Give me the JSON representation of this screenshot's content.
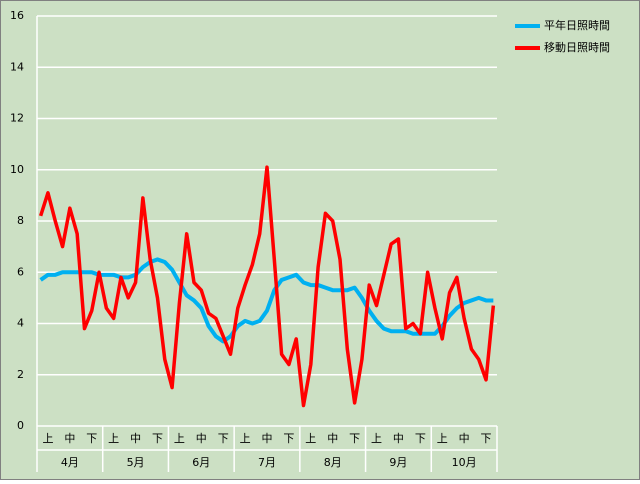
{
  "chart_data": {
    "type": "line",
    "categories": [
      null,
      "上",
      null,
      null,
      "中",
      null,
      null,
      "下",
      null,
      null,
      "上",
      null,
      null,
      "中",
      null,
      null,
      "下",
      null,
      null,
      "上",
      null,
      null,
      "中",
      null,
      null,
      "下",
      null,
      null,
      "上",
      null,
      null,
      "中",
      null,
      null,
      "下",
      null,
      null,
      "上",
      null,
      null,
      "中",
      null,
      null,
      "下",
      null,
      null,
      "上",
      null,
      null,
      "中",
      null,
      null,
      "下",
      null,
      null,
      "上",
      null,
      null,
      "中",
      null,
      null,
      "下",
      null
    ],
    "groups": [
      "4月",
      "5月",
      "6月",
      "7月",
      "8月",
      "9月",
      "10月"
    ],
    "series": [
      {
        "name": "平年日照時間",
        "color": "#00b0f0",
        "values": [
          5.7,
          5.9,
          5.9,
          6.0,
          6.0,
          6.0,
          6.0,
          6.0,
          5.9,
          5.9,
          5.9,
          5.8,
          5.8,
          5.9,
          6.2,
          6.4,
          6.5,
          6.4,
          6.1,
          5.6,
          5.1,
          4.9,
          4.6,
          3.9,
          3.5,
          3.3,
          3.5,
          3.9,
          4.1,
          4.0,
          4.1,
          4.5,
          5.3,
          5.7,
          5.8,
          5.9,
          5.6,
          5.5,
          5.5,
          5.4,
          5.3,
          5.3,
          5.3,
          5.4,
          5.0,
          4.5,
          4.1,
          3.8,
          3.7,
          3.7,
          3.7,
          3.6,
          3.6,
          3.6,
          3.6,
          3.9,
          4.3,
          4.6,
          4.8,
          4.9,
          5.0,
          4.9,
          4.9
        ]
      },
      {
        "name": "移動日照時間",
        "color": "#ff0000",
        "values": [
          8.2,
          9.1,
          8.0,
          7.0,
          8.5,
          7.5,
          3.8,
          4.5,
          6.0,
          4.6,
          4.2,
          5.8,
          5.0,
          5.6,
          8.9,
          6.5,
          5.0,
          2.6,
          1.5,
          4.8,
          7.5,
          5.6,
          5.3,
          4.4,
          4.2,
          3.5,
          2.8,
          4.6,
          5.5,
          6.3,
          7.5,
          10.1,
          6.5,
          2.8,
          2.4,
          3.4,
          0.8,
          2.4,
          6.2,
          8.3,
          8.0,
          6.5,
          3.0,
          0.9,
          2.6,
          5.5,
          4.7,
          5.9,
          7.1,
          7.3,
          3.8,
          4.0,
          3.6,
          6.0,
          4.6,
          3.4,
          5.2,
          5.8,
          4.2,
          3.0,
          2.6,
          1.8,
          4.7
        ]
      }
    ],
    "ylim": [
      0,
      16
    ],
    "yticks": [
      0,
      2,
      4,
      6,
      8,
      10,
      12,
      14,
      16
    ],
    "grid": true,
    "legend": "right"
  }
}
